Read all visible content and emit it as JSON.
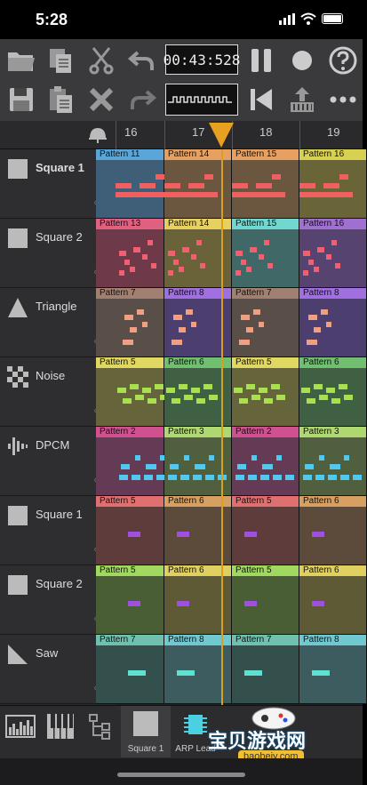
{
  "status": {
    "time": "5:28"
  },
  "toolbar": {
    "time_display": "00:43:528",
    "icons": [
      "open-folder-icon",
      "copy-icon",
      "cut-icon",
      "undo-icon",
      "pause-icon",
      "record-icon",
      "help-icon",
      "save-icon",
      "paste-icon",
      "delete-icon",
      "redo-icon",
      "rewind-icon",
      "export-icon",
      "more-icon"
    ]
  },
  "ruler": {
    "numbers": [
      "16",
      "17",
      "18",
      "19"
    ]
  },
  "channels": [
    {
      "name": "Square 1",
      "icon": "square-wave-icon",
      "bold": true
    },
    {
      "name": "Square 2",
      "icon": "square-wave-icon",
      "bold": false
    },
    {
      "name": "Triangle",
      "icon": "triangle-wave-icon",
      "bold": false
    },
    {
      "name": "Noise",
      "icon": "noise-icon",
      "bold": false
    },
    {
      "name": "DPCM",
      "icon": "dpcm-icon",
      "bold": false
    },
    {
      "name": "Square 1",
      "icon": "square-wave-icon",
      "bold": false
    },
    {
      "name": "Square 2",
      "icon": "square-wave-icon",
      "bold": false
    },
    {
      "name": "Saw",
      "icon": "saw-wave-icon",
      "bold": false
    }
  ],
  "patterns": [
    [
      {
        "label": "Pattern 11",
        "color": "#5aa6d8",
        "bg": "#3f5f78"
      },
      {
        "label": "Pattern 14",
        "color": "#e8a060",
        "bg": "#6b5640"
      },
      {
        "label": "Pattern 15",
        "color": "#e8a060",
        "bg": "#6b5640"
      },
      {
        "label": "Pattern 16",
        "color": "#d8d050",
        "bg": "#6a6538"
      }
    ],
    [
      {
        "label": "Pattern 13",
        "color": "#e06080",
        "bg": "#6e3a4a"
      },
      {
        "label": "Pattern 14",
        "color": "#e8d060",
        "bg": "#6a6238"
      },
      {
        "label": "Pattern 15",
        "color": "#70d8d0",
        "bg": "#3f6866"
      },
      {
        "label": "Pattern 16",
        "color": "#a070d0",
        "bg": "#574370"
      }
    ],
    [
      {
        "label": "Pattern 7",
        "color": "#a08070",
        "bg": "#5a4e48"
      },
      {
        "label": "Pattern 8",
        "color": "#a070e0",
        "bg": "#4c3e6e"
      },
      {
        "label": "Pattern 7",
        "color": "#a08070",
        "bg": "#5a4e48"
      },
      {
        "label": "Pattern 8",
        "color": "#a070e0",
        "bg": "#4c3e6e"
      }
    ],
    [
      {
        "label": "Pattern 5",
        "color": "#e0d860",
        "bg": "#66643a"
      },
      {
        "label": "Pattern 6",
        "color": "#70c070",
        "bg": "#3f6042"
      },
      {
        "label": "Pattern 5",
        "color": "#e0d860",
        "bg": "#66643a"
      },
      {
        "label": "Pattern 6",
        "color": "#70c070",
        "bg": "#3f6042"
      }
    ],
    [
      {
        "label": "Pattern 2",
        "color": "#d05090",
        "bg": "#653a55"
      },
      {
        "label": "Pattern 3",
        "color": "#b0d870",
        "bg": "#50603e"
      },
      {
        "label": "Pattern 2",
        "color": "#d05090",
        "bg": "#653a55"
      },
      {
        "label": "Pattern 3",
        "color": "#b0d870",
        "bg": "#50603e"
      }
    ],
    [
      {
        "label": "Pattern 5",
        "color": "#e07070",
        "bg": "#5e3c3c"
      },
      {
        "label": "Pattern 6",
        "color": "#d8a060",
        "bg": "#5c4a3a"
      },
      {
        "label": "Pattern 5",
        "color": "#e07070",
        "bg": "#5e3c3c"
      },
      {
        "label": "Pattern 6",
        "color": "#d8a060",
        "bg": "#5c4a3a"
      }
    ],
    [
      {
        "label": "Pattern 5",
        "color": "#a0d860",
        "bg": "#4a5e36"
      },
      {
        "label": "Pattern 6",
        "color": "#e0d060",
        "bg": "#5e5a36"
      },
      {
        "label": "Pattern 5",
        "color": "#a0d860",
        "bg": "#4a5e36"
      },
      {
        "label": "Pattern 6",
        "color": "#e0d060",
        "bg": "#5e5a36"
      }
    ],
    [
      {
        "label": "Pattern 7",
        "color": "#70c0b0",
        "bg": "#33504c"
      },
      {
        "label": "Pattern 8",
        "color": "#70c8d0",
        "bg": "#3c5c60"
      },
      {
        "label": "Pattern 7",
        "color": "#70c0b0",
        "bg": "#33504c"
      },
      {
        "label": "Pattern 8",
        "color": "#70c8d0",
        "bg": "#3c5c60"
      }
    ]
  ],
  "note_colors": [
    "#f06060",
    "#f06070",
    "#f0a080",
    "#a8e050",
    "#50c8f0",
    "#a050e0",
    "#a050e0",
    "#60e0d0"
  ],
  "bottom": {
    "tabs": [
      {
        "label": "Square 1",
        "icon": "square-instrument-icon"
      },
      {
        "label": "ARP Lead",
        "icon": "chip-icon"
      }
    ]
  },
  "watermark": {
    "text": "宝贝游戏网",
    "url": "baobeiy.com"
  }
}
